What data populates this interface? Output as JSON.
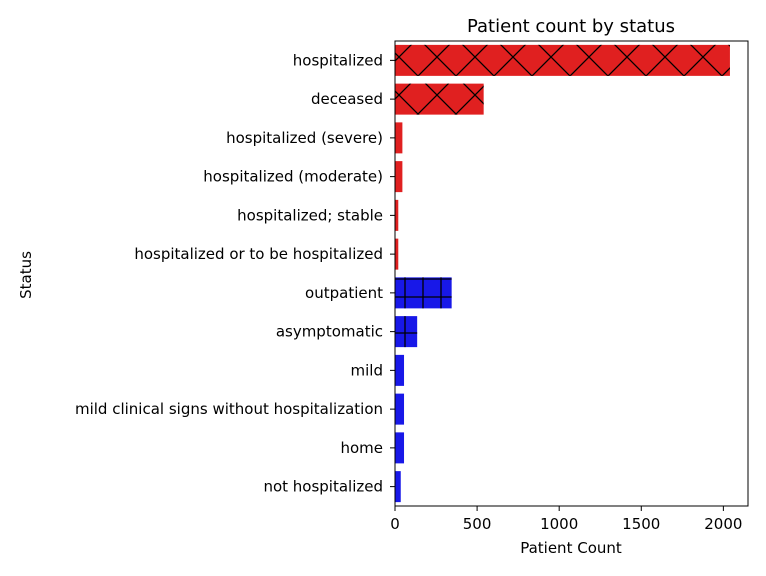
{
  "chart_data": {
    "type": "bar",
    "orientation": "horizontal",
    "title": "Patient count by status",
    "xlabel": "Patient Count",
    "ylabel": "Status",
    "xlim": [
      0,
      2150
    ],
    "xticks": [
      0,
      500,
      1000,
      1500,
      2000
    ],
    "grid": false,
    "categories": [
      "hospitalized",
      "deceased",
      "hospitalized (severe)",
      "hospitalized (moderate)",
      "hospitalized; stable",
      "hospitalized or to be hospitalized",
      "outpatient",
      "asymptomatic",
      "mild",
      "mild clinical signs without hospitalization",
      "home",
      "not hospitalized"
    ],
    "values": [
      2040,
      540,
      45,
      45,
      20,
      20,
      345,
      135,
      55,
      55,
      55,
      35
    ],
    "colors": [
      "#e02020",
      "#e02020",
      "#e02020",
      "#e02020",
      "#e02020",
      "#e02020",
      "#1818e8",
      "#1818e8",
      "#1818e8",
      "#1818e8",
      "#1818e8",
      "#1818e8"
    ],
    "hatches": [
      "x",
      "x",
      "none",
      "none",
      "none",
      "none",
      "+",
      "+",
      "none",
      "none",
      "none",
      "none"
    ]
  }
}
